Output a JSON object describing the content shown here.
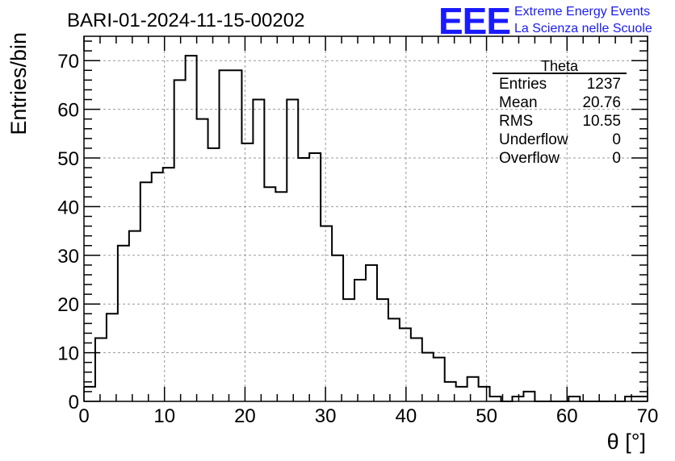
{
  "logo": {
    "letters": "EEE",
    "line1": "Extreme Energy Events",
    "line2": "La Scienza nelle Scuole"
  },
  "stats_box": {
    "title": "Theta",
    "rows": [
      {
        "label": "Entries",
        "value": "1237"
      },
      {
        "label": "Mean",
        "value": "20.76"
      },
      {
        "label": "RMS",
        "value": "10.55"
      },
      {
        "label": "Underflow",
        "value": "0"
      },
      {
        "label": "Overflow",
        "value": "0"
      }
    ]
  },
  "chart_data": {
    "type": "histogram",
    "title": "BARI-01-2024-11-15-00202",
    "xlabel": "θ [°]",
    "ylabel": "Entries/bin",
    "xlim": [
      0,
      70
    ],
    "ylim": [
      0,
      75
    ],
    "grid": true,
    "bin_width": 1.4,
    "x_ticks": [
      0,
      10,
      20,
      30,
      40,
      50,
      60,
      70
    ],
    "y_ticks": [
      0,
      10,
      20,
      30,
      40,
      50,
      60,
      70
    ],
    "values": [
      3,
      13,
      18,
      32,
      35,
      45,
      47,
      48,
      66,
      71,
      58,
      52,
      68,
      68,
      53,
      62,
      44,
      43,
      62,
      50,
      51,
      36,
      30,
      21,
      25,
      28,
      21,
      17,
      15,
      13,
      10,
      9,
      4,
      3,
      5,
      3,
      1,
      0,
      1,
      2,
      0,
      0,
      0,
      1,
      0,
      0,
      0,
      0,
      1,
      1
    ]
  }
}
